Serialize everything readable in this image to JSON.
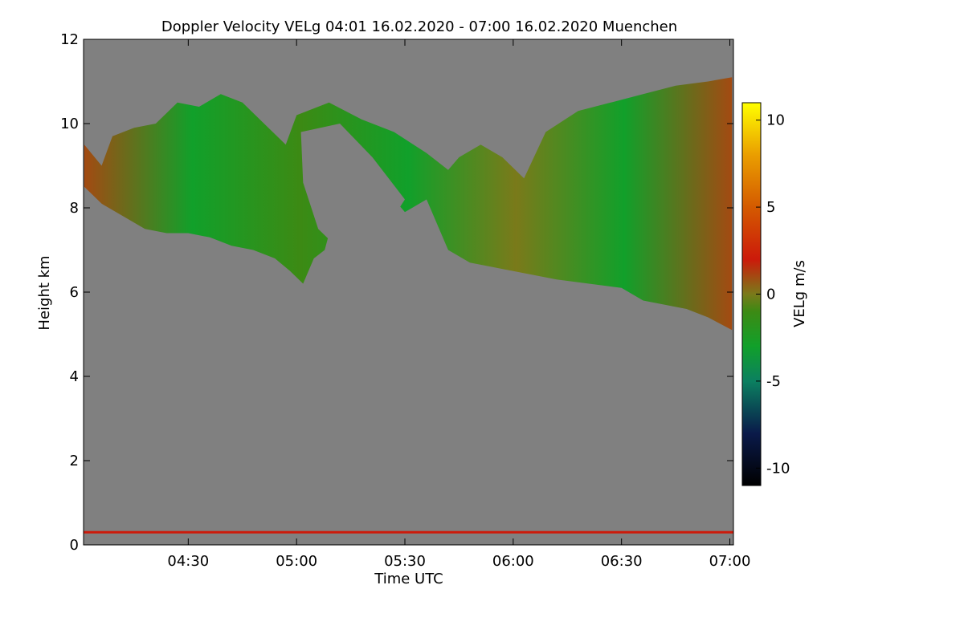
{
  "chart_data": {
    "type": "heatmap",
    "title": "Doppler Velocity VELg   04:01 16.02.2020 - 07:00 16.02.2020 Muenchen",
    "xlabel": "Time UTC",
    "ylabel": "Height km",
    "colorbar_label": "VELg m/s",
    "x_range": [
      "04:01",
      "07:01"
    ],
    "x_ticks": [
      "04:30",
      "05:00",
      "05:30",
      "06:00",
      "06:30",
      "07:00"
    ],
    "x_tick_hours": [
      4.5,
      5.0,
      5.5,
      6.0,
      6.5,
      7.0
    ],
    "ylim": [
      0,
      12
    ],
    "y_ticks": [
      0,
      2,
      4,
      6,
      8,
      10,
      12
    ],
    "colorbar_range": [
      -11,
      11
    ],
    "colorbar_ticks": [
      10,
      5,
      0,
      -5,
      -10
    ],
    "colormap": [
      {
        "v": -11,
        "color": "#000000"
      },
      {
        "v": -8,
        "color": "#0a1a4a"
      },
      {
        "v": -5,
        "color": "#0b8060"
      },
      {
        "v": -3,
        "color": "#11a02a"
      },
      {
        "v": -1,
        "color": "#3c8a14"
      },
      {
        "v": 0,
        "color": "#7a7a1a"
      },
      {
        "v": 2,
        "color": "#cc1a0a"
      },
      {
        "v": 5,
        "color": "#d45a00"
      },
      {
        "v": 8,
        "color": "#ea9e00"
      },
      {
        "v": 11,
        "color": "#ffff00"
      }
    ],
    "background_color": "#808080",
    "cloud_layer": {
      "velocity_range": [
        -3,
        1
      ],
      "top_km": [
        [
          4.02,
          9.5
        ],
        [
          4.1,
          9.0
        ],
        [
          4.15,
          9.7
        ],
        [
          4.25,
          9.9
        ],
        [
          4.35,
          10.0
        ],
        [
          4.45,
          10.5
        ],
        [
          4.55,
          10.4
        ],
        [
          4.65,
          10.7
        ],
        [
          4.75,
          10.5
        ],
        [
          4.85,
          10.0
        ],
        [
          4.95,
          9.5
        ],
        [
          5.0,
          10.2
        ],
        [
          5.15,
          10.5
        ],
        [
          5.3,
          10.1
        ],
        [
          5.45,
          9.8
        ],
        [
          5.6,
          9.3
        ],
        [
          5.7,
          8.9
        ],
        [
          5.75,
          9.2
        ],
        [
          5.85,
          9.5
        ],
        [
          5.95,
          9.2
        ],
        [
          6.05,
          8.7
        ],
        [
          6.15,
          9.8
        ],
        [
          6.3,
          10.3
        ],
        [
          6.45,
          10.5
        ],
        [
          6.6,
          10.7
        ],
        [
          6.75,
          10.9
        ],
        [
          6.9,
          11.0
        ],
        [
          7.01,
          11.1
        ]
      ],
      "base_km": [
        [
          4.02,
          8.5
        ],
        [
          4.1,
          8.1
        ],
        [
          4.2,
          7.8
        ],
        [
          4.3,
          7.5
        ],
        [
          4.4,
          7.4
        ],
        [
          4.5,
          7.4
        ],
        [
          4.6,
          7.3
        ],
        [
          4.7,
          7.1
        ],
        [
          4.8,
          7.0
        ],
        [
          4.9,
          6.8
        ],
        [
          4.97,
          6.5
        ],
        [
          5.03,
          6.2
        ],
        [
          5.08,
          6.8
        ],
        [
          5.13,
          7.0
        ],
        [
          5.25,
          9.3
        ],
        [
          5.4,
          8.5
        ],
        [
          5.5,
          7.9
        ],
        [
          5.6,
          8.2
        ],
        [
          5.7,
          7.0
        ],
        [
          5.8,
          6.7
        ],
        [
          5.9,
          6.6
        ],
        [
          6.0,
          6.5
        ],
        [
          6.1,
          6.4
        ],
        [
          6.2,
          6.3
        ],
        [
          6.35,
          6.2
        ],
        [
          6.5,
          6.1
        ],
        [
          6.6,
          5.8
        ],
        [
          6.7,
          5.7
        ],
        [
          6.8,
          5.6
        ],
        [
          6.9,
          5.4
        ],
        [
          7.01,
          5.1
        ]
      ]
    },
    "surface_layer": {
      "height_km": 0.3,
      "velocity": 2
    }
  }
}
